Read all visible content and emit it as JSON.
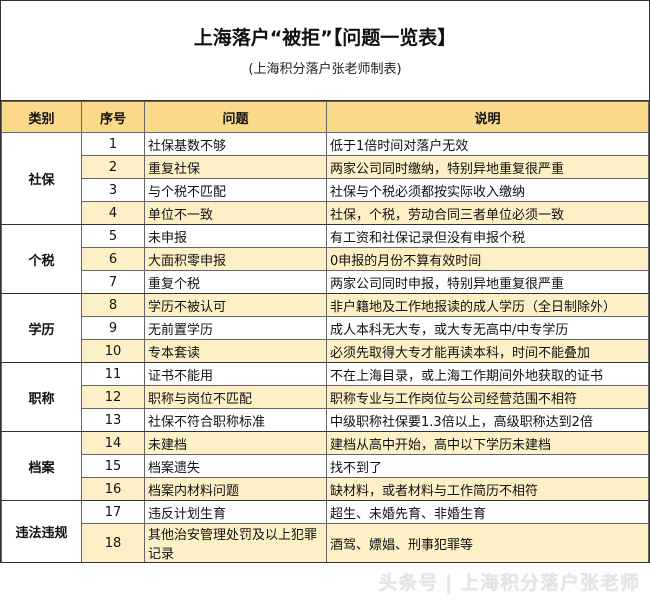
{
  "title": "上海落户“被拒”【问题一览表】",
  "subtitle": "(上海积分落户张老师制表)",
  "headers": [
    "类别",
    "序号",
    "问题",
    "说明"
  ],
  "groups": [
    {
      "category": "社保",
      "rows": [
        [
          "1",
          "社保基数不够",
          "低于1倍时间对落户无效"
        ],
        [
          "2",
          "重复社保",
          "两家公司同时缴纳，特别异地重复很严重"
        ],
        [
          "3",
          "与个税不匹配",
          "社保与个税必须都按实际收入缴纳"
        ],
        [
          "4",
          "单位不一致",
          "社保，个税，劳动合同三者单位必须一致"
        ]
      ]
    },
    {
      "category": "个税",
      "rows": [
        [
          "5",
          "未申报",
          "有工资和社保记录但没有申报个税"
        ],
        [
          "6",
          "大面积零申报",
          "0申报的月份不算有效时间"
        ],
        [
          "7",
          "重复个税",
          "两家公司同时申报，特别异地重复很严重"
        ]
      ]
    },
    {
      "category": "学历",
      "rows": [
        [
          "8",
          "学历不被认可",
          "非户籍地及工作地报读的成人学历（全日制除外）"
        ],
        [
          "9",
          "无前置学历",
          "成人本科无大专，或大专无高中/中专学历"
        ],
        [
          "10",
          "专本套读",
          "必须先取得大专才能再读本科，时间不能叠加"
        ]
      ]
    },
    {
      "category": "职称",
      "rows": [
        [
          "11",
          "证书不能用",
          "不在上海目录，或上海工作期间外地获取的证书"
        ],
        [
          "12",
          "职称与岗位不匹配",
          "职称专业与工作岗位与公司经营范围不相符"
        ],
        [
          "13",
          "社保不符合职称标准",
          "中级职称社保要1.3倍以上，高级职称达到2倍"
        ]
      ]
    },
    {
      "category": "档案",
      "rows": [
        [
          "14",
          "未建档",
          "建档从高中开始，高中以下学历未建档"
        ],
        [
          "15",
          "档案遗失",
          "找不到了"
        ],
        [
          "16",
          "档案内材料问题",
          "缺材料，或者材料与工作简历不相符"
        ]
      ]
    },
    {
      "category": "违法违规",
      "rows": [
        [
          "17",
          "违反计划生育",
          "超生、未婚先育、非婚生育"
        ],
        [
          "18",
          "其他治安管理处罚及以上犯罪记录",
          "酒驾、嫖娼、刑事犯罪等"
        ]
      ]
    }
  ],
  "watermark": "头条号 | 上海积分落户张老师",
  "colors": {
    "header": "#fbd98a",
    "alt_row": "#fdefc6"
  }
}
